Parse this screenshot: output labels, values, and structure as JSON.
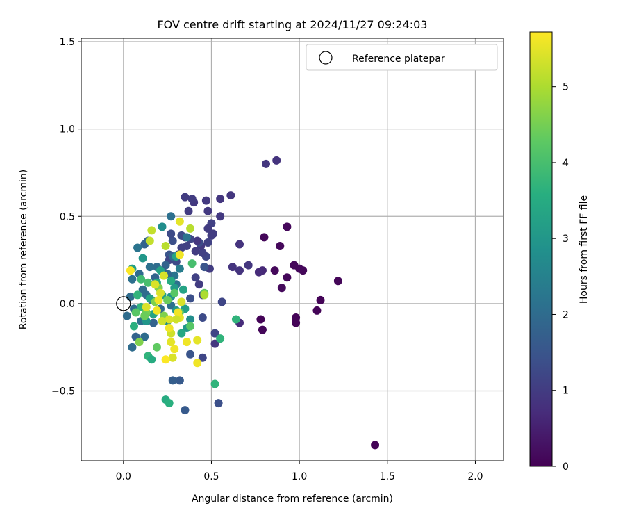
{
  "chart_data": {
    "type": "scatter",
    "title": "FOV centre drift starting at 2024/11/27 09:24:03",
    "xlabel": "Angular distance from reference (arcmin)",
    "ylabel": "Rotation from reference (arcmin)",
    "xlim": [
      -0.24,
      2.16
    ],
    "ylim": [
      -0.9,
      1.52
    ],
    "xticks": [
      0.0,
      0.5,
      1.0,
      1.5,
      2.0
    ],
    "xtick_labels": [
      "0.0",
      "0.5",
      "1.0",
      "1.5",
      "2.0"
    ],
    "yticks": [
      -0.5,
      0.0,
      0.5,
      1.0,
      1.5
    ],
    "ytick_labels": [
      "−0.5",
      "0.0",
      "0.5",
      "1.0",
      "1.5"
    ],
    "grid": true,
    "legend": {
      "placement": "top-right",
      "entries": [
        "Reference platepar"
      ]
    },
    "reference_point": {
      "name": "Reference platepar",
      "x": 0.0,
      "y": 0.0
    },
    "colorbar": {
      "label": "Hours from first FF file",
      "colormap": "viridis",
      "range": [
        0,
        5.72
      ],
      "ticks": [
        0,
        1,
        2,
        3,
        4,
        5
      ],
      "tick_labels": [
        "0",
        "1",
        "2",
        "3",
        "4",
        "5"
      ]
    },
    "series": [
      {
        "points": [
          [
            1.43,
            -0.81,
            0.05
          ],
          [
            1.22,
            0.13,
            0.08
          ],
          [
            1.12,
            0.02,
            0.05
          ],
          [
            1.1,
            -0.04,
            0.05
          ],
          [
            1.02,
            0.19,
            0.1
          ],
          [
            1.0,
            0.2,
            0.12
          ],
          [
            0.98,
            -0.08,
            0.05
          ],
          [
            0.98,
            -0.11,
            0.05
          ],
          [
            0.97,
            0.22,
            0.1
          ],
          [
            0.93,
            0.44,
            0.12
          ],
          [
            0.93,
            0.15,
            0.1
          ],
          [
            0.9,
            0.09,
            0.15
          ],
          [
            0.89,
            0.33,
            0.12
          ],
          [
            0.86,
            0.19,
            0.12
          ],
          [
            0.87,
            0.82,
            0.85
          ],
          [
            0.81,
            0.8,
            0.9
          ],
          [
            0.8,
            0.38,
            0.1
          ],
          [
            0.79,
            0.19,
            0.65
          ],
          [
            0.78,
            -0.09,
            0.05
          ],
          [
            0.79,
            -0.15,
            0.1
          ],
          [
            0.77,
            0.18,
            0.7
          ],
          [
            0.71,
            0.22,
            0.9
          ],
          [
            0.66,
            0.34,
            0.85
          ],
          [
            0.66,
            0.19,
            0.85
          ],
          [
            0.66,
            -0.11,
            0.7
          ],
          [
            0.62,
            0.21,
            0.85
          ],
          [
            0.61,
            0.62,
            0.9
          ],
          [
            0.56,
            0.01,
            1.2
          ],
          [
            0.55,
            0.6,
            0.9
          ],
          [
            0.55,
            0.5,
            0.95
          ],
          [
            0.54,
            -0.57,
            1.4
          ],
          [
            0.52,
            -0.17,
            1.2
          ],
          [
            0.52,
            -0.23,
            0.9
          ],
          [
            0.51,
            0.4,
            1.0
          ],
          [
            0.5,
            0.46,
            1.1
          ],
          [
            0.5,
            0.39,
            1.0
          ],
          [
            0.49,
            0.2,
            1.0
          ],
          [
            0.48,
            0.53,
            0.95
          ],
          [
            0.48,
            0.43,
            1.0
          ],
          [
            0.48,
            0.35,
            1.1
          ],
          [
            0.47,
            0.59,
            0.95
          ],
          [
            0.47,
            0.27,
            1.2
          ],
          [
            0.46,
            0.21,
            1.5
          ],
          [
            0.45,
            0.05,
            1.1
          ],
          [
            0.45,
            0.29,
            1.1
          ],
          [
            0.44,
            0.33,
            0.95
          ],
          [
            0.43,
            0.35,
            1.3
          ],
          [
            0.43,
            0.11,
            1.0
          ],
          [
            0.42,
            0.36,
            0.9
          ],
          [
            0.41,
            0.3,
            1.0
          ],
          [
            0.41,
            0.15,
            1.1
          ],
          [
            0.4,
            0.58,
            0.95
          ],
          [
            0.39,
            0.6,
            1.0
          ],
          [
            0.38,
            0.37,
            1.2
          ],
          [
            0.38,
            0.03,
            1.4
          ],
          [
            0.37,
            0.53,
            1.0
          ],
          [
            0.36,
            0.33,
            1.1
          ],
          [
            0.35,
            0.61,
            1.0
          ],
          [
            0.35,
            0.38,
            1.2
          ],
          [
            0.33,
            0.39,
            1.3
          ],
          [
            0.33,
            0.32,
            1.1
          ],
          [
            0.32,
            -0.44,
            1.6
          ],
          [
            0.31,
            0.28,
            1.2
          ],
          [
            0.3,
            0.24,
            1.3
          ],
          [
            0.28,
            0.36,
            1.4
          ],
          [
            0.27,
            0.4,
            1.3
          ],
          [
            0.26,
            0.28,
            1.5
          ],
          [
            0.26,
            0.25,
            1.2
          ],
          [
            0.45,
            -0.08,
            1.3
          ],
          [
            0.45,
            -0.31,
            1.2
          ],
          [
            0.38,
            -0.29,
            1.5
          ],
          [
            0.28,
            -0.44,
            1.7
          ],
          [
            0.35,
            -0.61,
            1.6
          ],
          [
            0.27,
            0.5,
            2.1
          ],
          [
            0.36,
            0.38,
            2.2
          ],
          [
            0.32,
            0.2,
            2.4
          ],
          [
            0.3,
            0.11,
            2.1
          ],
          [
            0.29,
            0.16,
            2.2
          ],
          [
            0.28,
            0.27,
            1.9
          ],
          [
            0.27,
            -0.01,
            2.1
          ],
          [
            0.25,
            0.17,
            1.9
          ],
          [
            0.24,
            0.22,
            1.8
          ],
          [
            0.22,
            0.19,
            1.7
          ],
          [
            0.21,
            -0.03,
            2.0
          ],
          [
            0.2,
            0.09,
            2.1
          ],
          [
            0.19,
            0.21,
            2.0
          ],
          [
            0.18,
            0.15,
            1.8
          ],
          [
            0.17,
            -0.11,
            1.8
          ],
          [
            0.16,
            0.02,
            2.0
          ],
          [
            0.15,
            0.21,
            2.1
          ],
          [
            0.14,
            0.36,
            1.9
          ],
          [
            0.13,
            0.05,
            2.0
          ],
          [
            0.12,
            0.34,
            1.8
          ],
          [
            0.11,
            0.08,
            2.0
          ],
          [
            0.1,
            -0.1,
            2.1
          ],
          [
            0.09,
            0.17,
            2.0
          ],
          [
            0.08,
            0.32,
            2.2
          ],
          [
            0.07,
            -0.19,
            1.8
          ],
          [
            0.06,
            -0.03,
            2.0
          ],
          [
            0.05,
            0.14,
            2.1
          ],
          [
            0.05,
            -0.25,
            2.0
          ],
          [
            0.04,
            0.04,
            2.0
          ],
          [
            0.02,
            -0.07,
            2.0
          ],
          [
            0.12,
            -0.19,
            2.0
          ],
          [
            0.22,
            0.44,
            2.8
          ],
          [
            0.25,
            -0.1,
            2.8
          ],
          [
            0.27,
            0.04,
            2.9
          ],
          [
            0.3,
            -0.04,
            3.0
          ],
          [
            0.35,
            -0.03,
            3.2
          ],
          [
            0.36,
            -0.14,
            3.0
          ],
          [
            0.38,
            -0.09,
            2.8
          ],
          [
            0.3,
            0.27,
            3.3
          ],
          [
            0.27,
            0.13,
            3.5
          ],
          [
            0.22,
            0.05,
            3.2
          ],
          [
            0.19,
            0.12,
            3.4
          ],
          [
            0.17,
            -0.06,
            3.3
          ],
          [
            0.15,
            0.03,
            3.3
          ],
          [
            0.13,
            -0.1,
            3.0
          ],
          [
            0.11,
            0.26,
            3.0
          ],
          [
            0.1,
            -0.02,
            3.7
          ],
          [
            0.08,
            0.05,
            3.7
          ],
          [
            0.06,
            -0.13,
            3.6
          ],
          [
            0.05,
            0.2,
            3.2
          ],
          [
            0.24,
            -0.55,
            3.5
          ],
          [
            0.26,
            -0.57,
            3.6
          ],
          [
            0.14,
            -0.3,
            3.7
          ],
          [
            0.16,
            -0.32,
            3.5
          ],
          [
            0.21,
            0.19,
            3.3
          ],
          [
            0.29,
            0.09,
            3.1
          ],
          [
            0.34,
            0.08,
            3.3
          ],
          [
            0.33,
            -0.17,
            3.4
          ],
          [
            0.52,
            -0.46,
            3.7
          ],
          [
            0.55,
            -0.2,
            3.7
          ],
          [
            0.64,
            -0.09,
            3.7
          ],
          [
            0.39,
            0.23,
            4.0
          ],
          [
            0.38,
            -0.13,
            4.2
          ],
          [
            0.32,
            -0.05,
            4.2
          ],
          [
            0.29,
            0.06,
            4.2
          ],
          [
            0.25,
            0.02,
            4.4
          ],
          [
            0.23,
            -0.07,
            4.6
          ],
          [
            0.2,
            0.09,
            4.6
          ],
          [
            0.19,
            -0.25,
            4.3
          ],
          [
            0.18,
            0.01,
            4.6
          ],
          [
            0.14,
            0.12,
            4.0
          ],
          [
            0.13,
            -0.05,
            4.5
          ],
          [
            0.12,
            -0.07,
            4.4
          ],
          [
            0.1,
            0.14,
            3.9
          ],
          [
            0.09,
            -0.22,
            4.6
          ],
          [
            0.07,
            -0.05,
            4.2
          ],
          [
            0.46,
            0.06,
            4.3
          ],
          [
            0.46,
            0.05,
            5.0
          ],
          [
            0.42,
            -0.21,
            5.5
          ],
          [
            0.42,
            -0.34,
            5.6
          ],
          [
            0.38,
            0.43,
            5.1
          ],
          [
            0.36,
            -0.22,
            5.6
          ],
          [
            0.32,
            0.47,
            5.5
          ],
          [
            0.32,
            0.28,
            5.6
          ],
          [
            0.33,
            0.01,
            5.4
          ],
          [
            0.32,
            -0.08,
            5.5
          ],
          [
            0.31,
            -0.05,
            5.6
          ],
          [
            0.3,
            -0.09,
            5.3
          ],
          [
            0.29,
            -0.26,
            5.6
          ],
          [
            0.28,
            -0.31,
            5.4
          ],
          [
            0.27,
            -0.17,
            5.3
          ],
          [
            0.27,
            -0.22,
            5.5
          ],
          [
            0.26,
            -0.14,
            5.6
          ],
          [
            0.26,
            -0.09,
            5.4
          ],
          [
            0.24,
            0.33,
            5.1
          ],
          [
            0.24,
            -0.32,
            5.7
          ],
          [
            0.23,
            0.16,
            5.4
          ],
          [
            0.22,
            -0.1,
            5.3
          ],
          [
            0.21,
            0.06,
            5.4
          ],
          [
            0.2,
            0.02,
            5.6
          ],
          [
            0.19,
            -0.04,
            5.6
          ],
          [
            0.18,
            0.11,
            5.4
          ],
          [
            0.16,
            0.42,
            5.2
          ],
          [
            0.15,
            0.36,
            5.2
          ],
          [
            0.13,
            -0.02,
            5.4
          ],
          [
            0.04,
            0.19,
            5.7
          ]
        ]
      }
    ]
  }
}
